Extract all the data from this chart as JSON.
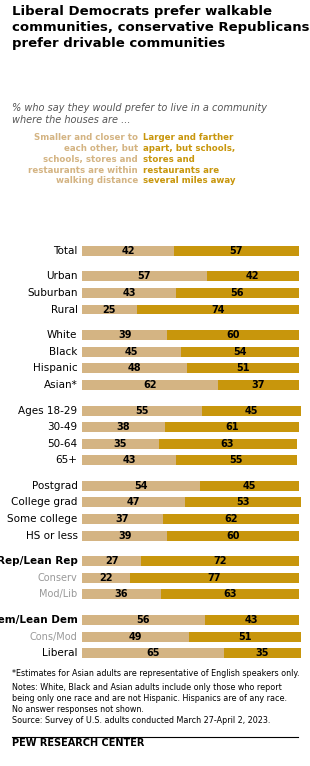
{
  "title": "Liberal Democrats prefer walkable\ncommunities, conservative Republicans\nprefer drivable communities",
  "subtitle": "% who say they would prefer to live in a community\nwhere the houses are ...",
  "legend_left": "Smaller and closer to\neach other, but\nschools, stores and\nrestaurants are within\nwalking distance",
  "legend_right": "Larger and farther\napart, but schools,\nstores and\nrestaurants are\nseveral miles away",
  "color_left": "#d4b483",
  "color_right": "#c8960c",
  "categories": [
    "Total",
    null,
    "Urban",
    "Suburban",
    "Rural",
    null,
    "White",
    "Black",
    "Hispanic",
    "Asian*",
    null,
    "Ages 18-29",
    "30-49",
    "50-64",
    "65+",
    null,
    "Postgrad",
    "College grad",
    "Some college",
    "HS or less",
    null,
    "Rep/Lean Rep",
    "Conserv",
    "Mod/Lib",
    null,
    "Dem/Lean Dem",
    "Cons/Mod",
    "Liberal"
  ],
  "values_left": [
    42,
    null,
    57,
    43,
    25,
    null,
    39,
    45,
    48,
    62,
    null,
    55,
    38,
    35,
    43,
    null,
    54,
    47,
    37,
    39,
    null,
    27,
    22,
    36,
    null,
    56,
    49,
    65
  ],
  "values_right": [
    57,
    null,
    42,
    56,
    74,
    null,
    60,
    54,
    51,
    37,
    null,
    45,
    61,
    63,
    55,
    null,
    45,
    53,
    62,
    60,
    null,
    72,
    77,
    63,
    null,
    43,
    51,
    35
  ],
  "bold_rows": [
    "Rep/Lean Rep",
    "Dem/Lean Dem"
  ],
  "gray_rows": [
    "Conserv",
    "Mod/Lib",
    "Cons/Mod"
  ],
  "footnote1": "*Estimates for Asian adults are representative of English speakers only.",
  "footnote2": "Notes: White, Black and Asian adults include only those who report\nbeing only one race and are not Hispanic. Hispanics are of any race.\nNo answer responses not shown.",
  "footnote3": "Source: Survey of U.S. adults conducted March 27-April 2, 2023.",
  "source": "PEW RESEARCH CENTER",
  "background_color": "#ffffff"
}
